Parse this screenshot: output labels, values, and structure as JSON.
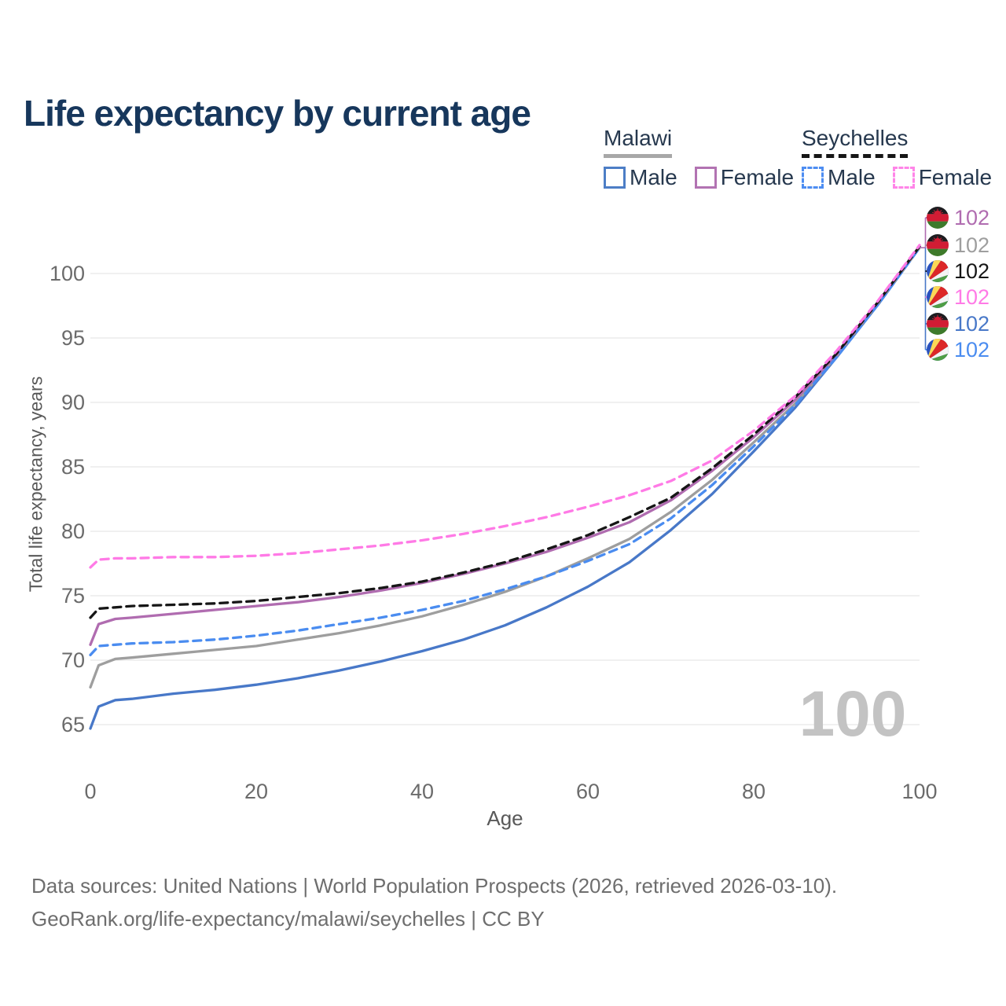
{
  "page": {
    "title": "Life expectancy by current age"
  },
  "legend": {
    "groups": [
      {
        "title": "Malawi",
        "line_style": "solid",
        "underline_color": "#a8a8a8",
        "items": [
          {
            "label": "Male",
            "color": "#4d7ec6",
            "dash": false
          },
          {
            "label": "Female",
            "color": "#b273b2",
            "dash": false
          }
        ]
      },
      {
        "title": "Seychelles",
        "line_style": "dashed",
        "underline_color": "#161616",
        "items": [
          {
            "label": "Male",
            "color": "#4d8df2",
            "dash": true
          },
          {
            "label": "Female",
            "color": "#ff85e8",
            "dash": true
          }
        ]
      }
    ]
  },
  "chart_data": {
    "type": "line",
    "title": "Life expectancy by current age",
    "xlabel": "Age",
    "ylabel": "Total life expectancy, years",
    "xlim": [
      0,
      100
    ],
    "ylim": [
      63,
      103
    ],
    "xticks": [
      0,
      20,
      40,
      60,
      80,
      100
    ],
    "yticks": [
      65,
      70,
      75,
      80,
      85,
      90,
      95,
      100
    ],
    "grid": "horizontal",
    "legend_position": "top-right",
    "x": [
      0,
      1,
      3,
      5,
      10,
      15,
      20,
      25,
      30,
      35,
      40,
      45,
      50,
      55,
      60,
      65,
      70,
      75,
      80,
      85,
      90,
      95,
      100
    ],
    "series": [
      {
        "name": "Malawi Male",
        "country": "malawi",
        "sex": "male",
        "style": "solid",
        "color": "#4878c8",
        "values": [
          64.7,
          66.4,
          66.9,
          67.0,
          67.4,
          67.7,
          68.1,
          68.6,
          69.2,
          69.9,
          70.7,
          71.6,
          72.7,
          74.1,
          75.7,
          77.6,
          80.1,
          82.9,
          86.2,
          89.6,
          93.5,
          97.6,
          102.0
        ]
      },
      {
        "name": "Malawi Total",
        "country": "malawi",
        "sex": "both",
        "style": "solid",
        "color": "#9e9e9e",
        "values": [
          67.9,
          69.6,
          70.1,
          70.2,
          70.5,
          70.8,
          71.1,
          71.6,
          72.1,
          72.7,
          73.4,
          74.3,
          75.3,
          76.5,
          77.9,
          79.4,
          81.5,
          84.0,
          86.9,
          89.9,
          93.6,
          97.7,
          102.0
        ]
      },
      {
        "name": "Malawi Female",
        "country": "malawi",
        "sex": "female",
        "style": "solid",
        "color": "#b06cb0",
        "values": [
          71.2,
          72.8,
          73.2,
          73.3,
          73.6,
          73.9,
          74.2,
          74.5,
          74.9,
          75.4,
          76.0,
          76.7,
          77.5,
          78.4,
          79.5,
          80.7,
          82.4,
          84.7,
          87.3,
          90.2,
          93.7,
          97.8,
          102.1
        ]
      },
      {
        "name": "Seychelles Male",
        "country": "seychelles",
        "sex": "male",
        "style": "dashed",
        "color": "#4a8cf0",
        "values": [
          70.4,
          71.1,
          71.2,
          71.3,
          71.4,
          71.6,
          71.9,
          72.3,
          72.8,
          73.3,
          73.9,
          74.6,
          75.5,
          76.5,
          77.7,
          79.0,
          81.0,
          83.6,
          86.6,
          89.8,
          93.5,
          97.6,
          102.0
        ]
      },
      {
        "name": "Seychelles Total",
        "country": "seychelles",
        "sex": "both",
        "style": "dashed",
        "color": "#161616",
        "values": [
          73.3,
          74.0,
          74.1,
          74.2,
          74.3,
          74.4,
          74.6,
          74.9,
          75.2,
          75.6,
          76.1,
          76.8,
          77.6,
          78.6,
          79.7,
          81.1,
          82.6,
          84.9,
          87.5,
          90.4,
          93.8,
          97.8,
          102.1
        ]
      },
      {
        "name": "Seychelles Female",
        "country": "seychelles",
        "sex": "female",
        "style": "dashed",
        "color": "#ff7ae6",
        "values": [
          77.2,
          77.8,
          77.9,
          77.9,
          78.0,
          78.0,
          78.1,
          78.3,
          78.6,
          78.9,
          79.3,
          79.8,
          80.4,
          81.1,
          81.9,
          82.8,
          83.9,
          85.5,
          87.8,
          90.5,
          94.0,
          97.9,
          102.2
        ]
      }
    ]
  },
  "end_labels": [
    {
      "country": "malawi",
      "value": "102",
      "color": "#b06cb0",
      "series": "Malawi Female"
    },
    {
      "country": "malawi",
      "value": "102",
      "color": "#9e9e9e",
      "series": "Malawi Total"
    },
    {
      "country": "seychelles",
      "value": "102",
      "color": "#161616",
      "series": "Seychelles Total"
    },
    {
      "country": "seychelles",
      "value": "102",
      "color": "#ff7ae6",
      "series": "Seychelles Female"
    },
    {
      "country": "malawi",
      "value": "102",
      "color": "#4878c8",
      "series": "Malawi Male"
    },
    {
      "country": "seychelles",
      "value": "102",
      "color": "#4a8cf0",
      "series": "Seychelles Male"
    }
  ],
  "watermark": "100",
  "footer": {
    "line1": "Data sources: United Nations | World Population Prospects (2026, retrieved 2026-03-10).",
    "line2": "GeoRank.org/life-expectancy/malawi/seychelles | CC BY"
  }
}
